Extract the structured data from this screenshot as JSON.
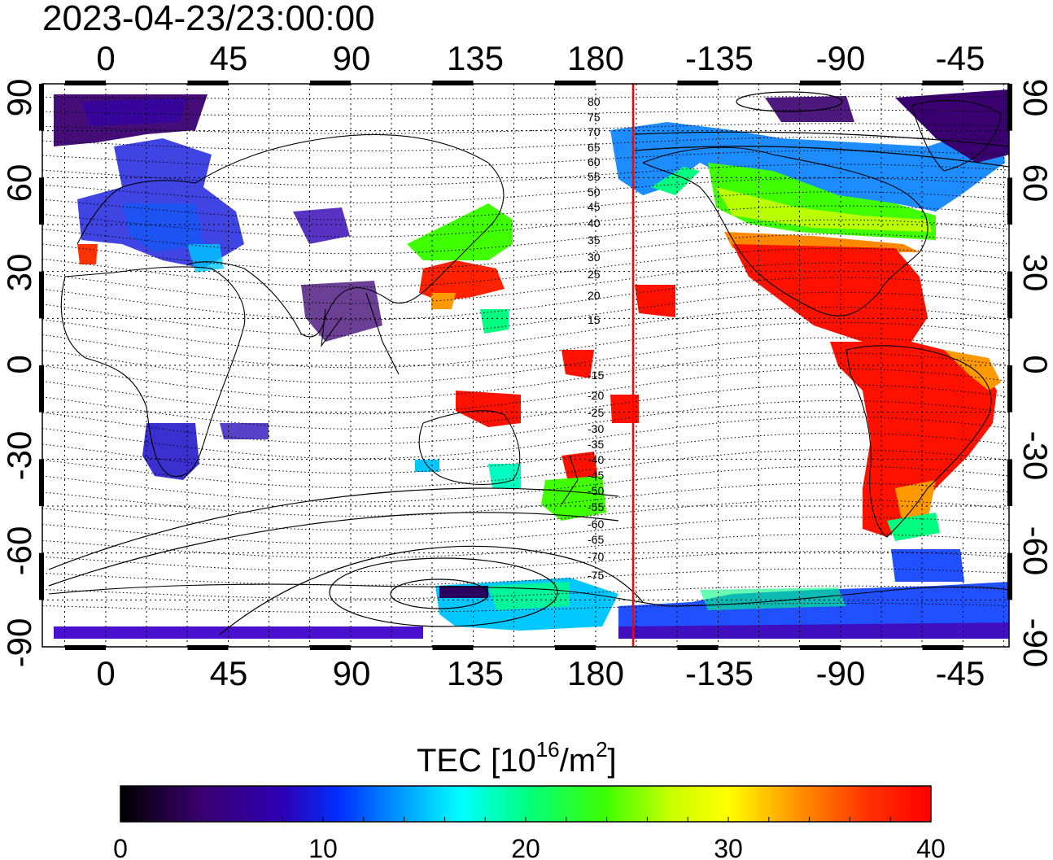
{
  "timestamp": "2023-04-23/23:00:00",
  "colorbar": {
    "title_prefix": "TEC  [10",
    "title_exp1": "16",
    "title_mid": "/m",
    "title_exp2": "2",
    "title_suffix": "]",
    "ticks": [
      "0",
      "10",
      "20",
      "30",
      "40"
    ],
    "range": [
      0,
      40
    ]
  },
  "axes": {
    "x_ticks_top": [
      "0",
      "45",
      "90",
      "135",
      "180",
      "-135",
      "-90",
      "-45"
    ],
    "x_ticks_bottom": [
      "0",
      "45",
      "90",
      "135",
      "180",
      "-135",
      "-90",
      "-45"
    ],
    "y_ticks_left": [
      "90",
      "60",
      "30",
      "0",
      "-30",
      "-60",
      "-90"
    ],
    "y_ticks_right": [
      "90",
      "60",
      "30",
      "0",
      "-30",
      "-60",
      "-90"
    ]
  },
  "contour_labels": [
    "80",
    "75",
    "70",
    "65",
    "60",
    "55",
    "50",
    "45",
    "40",
    "35",
    "30",
    "25",
    "20",
    "15",
    "-15",
    "-20",
    "-25",
    "-30",
    "-35",
    "-40",
    "-45",
    "-50",
    "-55",
    "-60",
    "-65",
    "-70",
    "-75"
  ],
  "terminator_longitude": -167,
  "colors": {
    "terminator": "#ff0000",
    "colormap": [
      "#000000",
      "#3a0070",
      "#2e00b4",
      "#0030ff",
      "#00a0ff",
      "#00ffff",
      "#00ff80",
      "#40ff00",
      "#c8ff00",
      "#ffff00",
      "#ff9900",
      "#ff3300",
      "#ff0000"
    ]
  }
}
